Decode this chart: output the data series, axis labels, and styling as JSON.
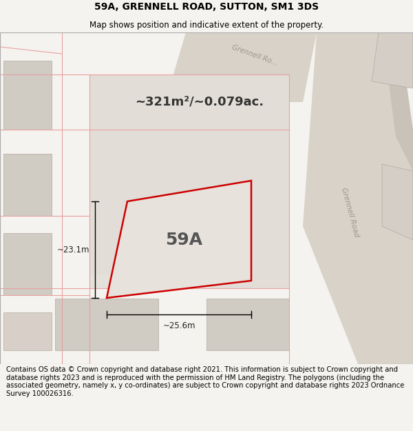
{
  "title": "59A, GRENNELL ROAD, SUTTON, SM1 3DS",
  "subtitle": "Map shows position and indicative extent of the property.",
  "area_text": "~321m²/~0.079ac.",
  "label_59a": "59A",
  "dim_vertical": "~23.1m",
  "dim_horizontal": "~25.6m",
  "road_label_top": "Grennell Ro...",
  "road_label_right": "Grennell Road",
  "footer": "Contains OS data © Crown copyright and database right 2021. This information is subject to Crown copyright and database rights 2023 and is reproduced with the permission of HM Land Registry. The polygons (including the associated geometry, namely x, y co-ordinates) are subject to Crown copyright and database rights 2023 Ordnance Survey 100026316.",
  "bg_color": "#f5f3ef",
  "map_bg": "#eeebe5",
  "plot_fill": "#e8e4de",
  "plot_edge": "#cc0000",
  "road_fill": "#d8d2c8",
  "building_fill": "#d0cbc3",
  "building_fill_alt": "#cfc9c1",
  "line_color": "#e8a0a0",
  "title_fontsize": 10,
  "subtitle_fontsize": 8.5,
  "footer_fontsize": 7.2
}
